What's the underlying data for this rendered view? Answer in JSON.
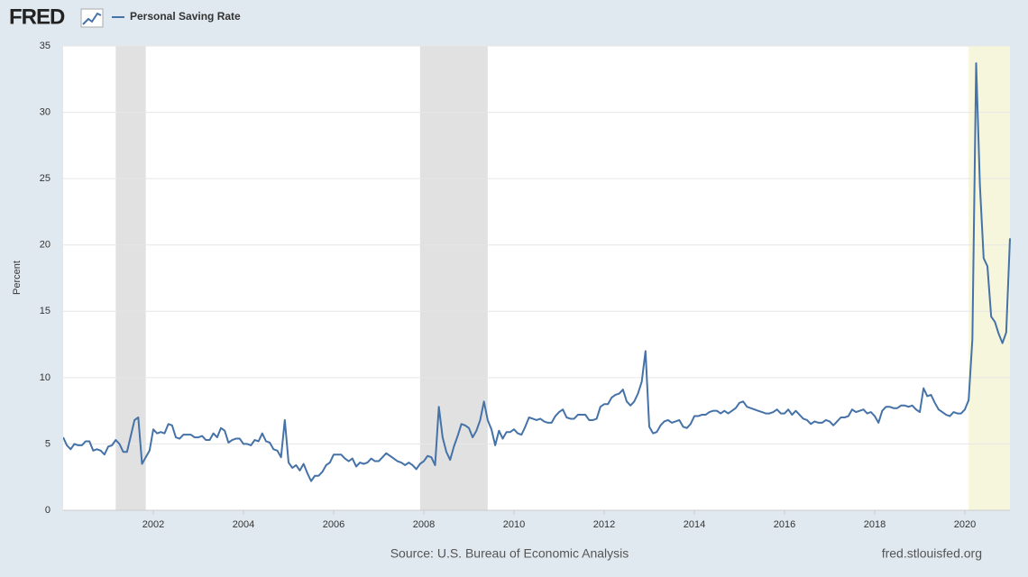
{
  "chart_data": {
    "type": "line",
    "logo": "FRED",
    "y_label": "Percent",
    "source": "Source: U.S. Bureau of Economic Analysis",
    "site": "fred.stlouisfed.org",
    "xlim": [
      "2000-01",
      "2021-01"
    ],
    "xticks": [
      "2002",
      "2004",
      "2006",
      "2008",
      "2010",
      "2012",
      "2014",
      "2016",
      "2018",
      "2020"
    ],
    "ylim": [
      0,
      35
    ],
    "yticks": [
      0,
      5,
      10,
      15,
      20,
      25,
      30,
      35
    ],
    "grid": true,
    "recessions": [
      {
        "start": "2001-03",
        "end": "2001-11",
        "color": "#e1e1e1"
      },
      {
        "start": "2007-12",
        "end": "2009-06",
        "color": "#e1e1e1"
      },
      {
        "start": "2020-02",
        "end": "2021-01",
        "color": "#f6f6dc"
      }
    ],
    "x": [
      "2000-01",
      "2000-02",
      "2000-03",
      "2000-04",
      "2000-05",
      "2000-06",
      "2000-07",
      "2000-08",
      "2000-09",
      "2000-10",
      "2000-11",
      "2000-12",
      "2001-01",
      "2001-02",
      "2001-03",
      "2001-04",
      "2001-05",
      "2001-06",
      "2001-07",
      "2001-08",
      "2001-09",
      "2001-10",
      "2001-11",
      "2001-12",
      "2002-01",
      "2002-02",
      "2002-03",
      "2002-04",
      "2002-05",
      "2002-06",
      "2002-07",
      "2002-08",
      "2002-09",
      "2002-10",
      "2002-11",
      "2002-12",
      "2003-01",
      "2003-02",
      "2003-03",
      "2003-04",
      "2003-05",
      "2003-06",
      "2003-07",
      "2003-08",
      "2003-09",
      "2003-10",
      "2003-11",
      "2003-12",
      "2004-01",
      "2004-02",
      "2004-03",
      "2004-04",
      "2004-05",
      "2004-06",
      "2004-07",
      "2004-08",
      "2004-09",
      "2004-10",
      "2004-11",
      "2004-12",
      "2005-01",
      "2005-02",
      "2005-03",
      "2005-04",
      "2005-05",
      "2005-06",
      "2005-07",
      "2005-08",
      "2005-09",
      "2005-10",
      "2005-11",
      "2005-12",
      "2006-01",
      "2006-02",
      "2006-03",
      "2006-04",
      "2006-05",
      "2006-06",
      "2006-07",
      "2006-08",
      "2006-09",
      "2006-10",
      "2006-11",
      "2006-12",
      "2007-01",
      "2007-02",
      "2007-03",
      "2007-04",
      "2007-05",
      "2007-06",
      "2007-07",
      "2007-08",
      "2007-09",
      "2007-10",
      "2007-11",
      "2007-12",
      "2008-01",
      "2008-02",
      "2008-03",
      "2008-04",
      "2008-05",
      "2008-06",
      "2008-07",
      "2008-08",
      "2008-09",
      "2008-10",
      "2008-11",
      "2008-12",
      "2009-01",
      "2009-02",
      "2009-03",
      "2009-04",
      "2009-05",
      "2009-06",
      "2009-07",
      "2009-08",
      "2009-09",
      "2009-10",
      "2009-11",
      "2009-12",
      "2010-01",
      "2010-02",
      "2010-03",
      "2010-04",
      "2010-05",
      "2010-06",
      "2010-07",
      "2010-08",
      "2010-09",
      "2010-10",
      "2010-11",
      "2010-12",
      "2011-01",
      "2011-02",
      "2011-03",
      "2011-04",
      "2011-05",
      "2011-06",
      "2011-07",
      "2011-08",
      "2011-09",
      "2011-10",
      "2011-11",
      "2011-12",
      "2012-01",
      "2012-02",
      "2012-03",
      "2012-04",
      "2012-05",
      "2012-06",
      "2012-07",
      "2012-08",
      "2012-09",
      "2012-10",
      "2012-11",
      "2012-12",
      "2013-01",
      "2013-02",
      "2013-03",
      "2013-04",
      "2013-05",
      "2013-06",
      "2013-07",
      "2013-08",
      "2013-09",
      "2013-10",
      "2013-11",
      "2013-12",
      "2014-01",
      "2014-02",
      "2014-03",
      "2014-04",
      "2014-05",
      "2014-06",
      "2014-07",
      "2014-08",
      "2014-09",
      "2014-10",
      "2014-11",
      "2014-12",
      "2015-01",
      "2015-02",
      "2015-03",
      "2015-04",
      "2015-05",
      "2015-06",
      "2015-07",
      "2015-08",
      "2015-09",
      "2015-10",
      "2015-11",
      "2015-12",
      "2016-01",
      "2016-02",
      "2016-03",
      "2016-04",
      "2016-05",
      "2016-06",
      "2016-07",
      "2016-08",
      "2016-09",
      "2016-10",
      "2016-11",
      "2016-12",
      "2017-01",
      "2017-02",
      "2017-03",
      "2017-04",
      "2017-05",
      "2017-06",
      "2017-07",
      "2017-08",
      "2017-09",
      "2017-10",
      "2017-11",
      "2017-12",
      "2018-01",
      "2018-02",
      "2018-03",
      "2018-04",
      "2018-05",
      "2018-06",
      "2018-07",
      "2018-08",
      "2018-09",
      "2018-10",
      "2018-11",
      "2018-12",
      "2019-01",
      "2019-02",
      "2019-03",
      "2019-04",
      "2019-05",
      "2019-06",
      "2019-07",
      "2019-08",
      "2019-09",
      "2019-10",
      "2019-11",
      "2019-12",
      "2020-01",
      "2020-02",
      "2020-03",
      "2020-04",
      "2020-05",
      "2020-06",
      "2020-07",
      "2020-08",
      "2020-09",
      "2020-10",
      "2020-11",
      "2020-12",
      "2021-01"
    ],
    "series": [
      {
        "name": "Personal Saving Rate",
        "color": "#4572a7",
        "values": [
          5.5,
          4.9,
          4.6,
          5.0,
          4.9,
          4.9,
          5.2,
          5.2,
          4.5,
          4.6,
          4.5,
          4.2,
          4.8,
          4.9,
          5.3,
          5.0,
          4.4,
          4.4,
          5.6,
          6.8,
          7.0,
          3.5,
          4.0,
          4.5,
          6.1,
          5.8,
          5.9,
          5.8,
          6.5,
          6.4,
          5.5,
          5.4,
          5.7,
          5.7,
          5.7,
          5.5,
          5.5,
          5.6,
          5.3,
          5.3,
          5.8,
          5.5,
          6.2,
          6.0,
          5.1,
          5.3,
          5.4,
          5.4,
          5.0,
          5.0,
          4.9,
          5.3,
          5.2,
          5.8,
          5.2,
          5.1,
          4.6,
          4.5,
          4.0,
          6.8,
          3.6,
          3.2,
          3.4,
          3.0,
          3.5,
          2.8,
          2.2,
          2.6,
          2.6,
          2.9,
          3.4,
          3.6,
          4.2,
          4.2,
          4.2,
          3.9,
          3.7,
          3.9,
          3.3,
          3.6,
          3.5,
          3.6,
          3.9,
          3.7,
          3.7,
          4.0,
          4.3,
          4.1,
          3.9,
          3.7,
          3.6,
          3.4,
          3.6,
          3.4,
          3.1,
          3.5,
          3.7,
          4.1,
          4.0,
          3.4,
          7.8,
          5.5,
          4.4,
          3.8,
          4.8,
          5.6,
          6.5,
          6.4,
          6.2,
          5.5,
          6.0,
          6.8,
          8.2,
          6.8,
          6.1,
          4.9,
          6.0,
          5.4,
          5.9,
          5.9,
          6.1,
          5.8,
          5.7,
          6.3,
          7.0,
          6.9,
          6.8,
          6.9,
          6.7,
          6.6,
          6.6,
          7.1,
          7.4,
          7.6,
          7.0,
          6.9,
          6.9,
          7.2,
          7.2,
          7.2,
          6.8,
          6.8,
          6.9,
          7.8,
          8.0,
          8.0,
          8.5,
          8.7,
          8.8,
          9.1,
          8.2,
          7.9,
          8.2,
          8.8,
          9.7,
          12.0,
          6.3,
          5.8,
          5.9,
          6.4,
          6.7,
          6.8,
          6.6,
          6.7,
          6.8,
          6.3,
          6.2,
          6.5,
          7.1,
          7.1,
          7.2,
          7.2,
          7.4,
          7.5,
          7.5,
          7.3,
          7.5,
          7.3,
          7.5,
          7.7,
          8.1,
          8.2,
          7.8,
          7.7,
          7.6,
          7.5,
          7.4,
          7.3,
          7.3,
          7.4,
          7.6,
          7.3,
          7.3,
          7.6,
          7.2,
          7.5,
          7.2,
          6.9,
          6.8,
          6.5,
          6.7,
          6.6,
          6.6,
          6.8,
          6.7,
          6.4,
          6.7,
          7.0,
          7.0,
          7.1,
          7.6,
          7.4,
          7.5,
          7.6,
          7.3,
          7.4,
          7.1,
          6.6,
          7.5,
          7.8,
          7.8,
          7.7,
          7.7,
          7.9,
          7.9,
          7.8,
          7.9,
          7.6,
          7.4,
          9.2,
          8.6,
          8.7,
          8.1,
          7.6,
          7.4,
          7.2,
          7.1,
          7.4,
          7.3,
          7.3,
          7.6,
          8.3,
          12.9,
          33.7,
          24.5,
          19.0,
          18.4,
          14.6,
          14.2,
          13.3,
          12.6,
          13.4,
          20.5
        ]
      }
    ]
  }
}
